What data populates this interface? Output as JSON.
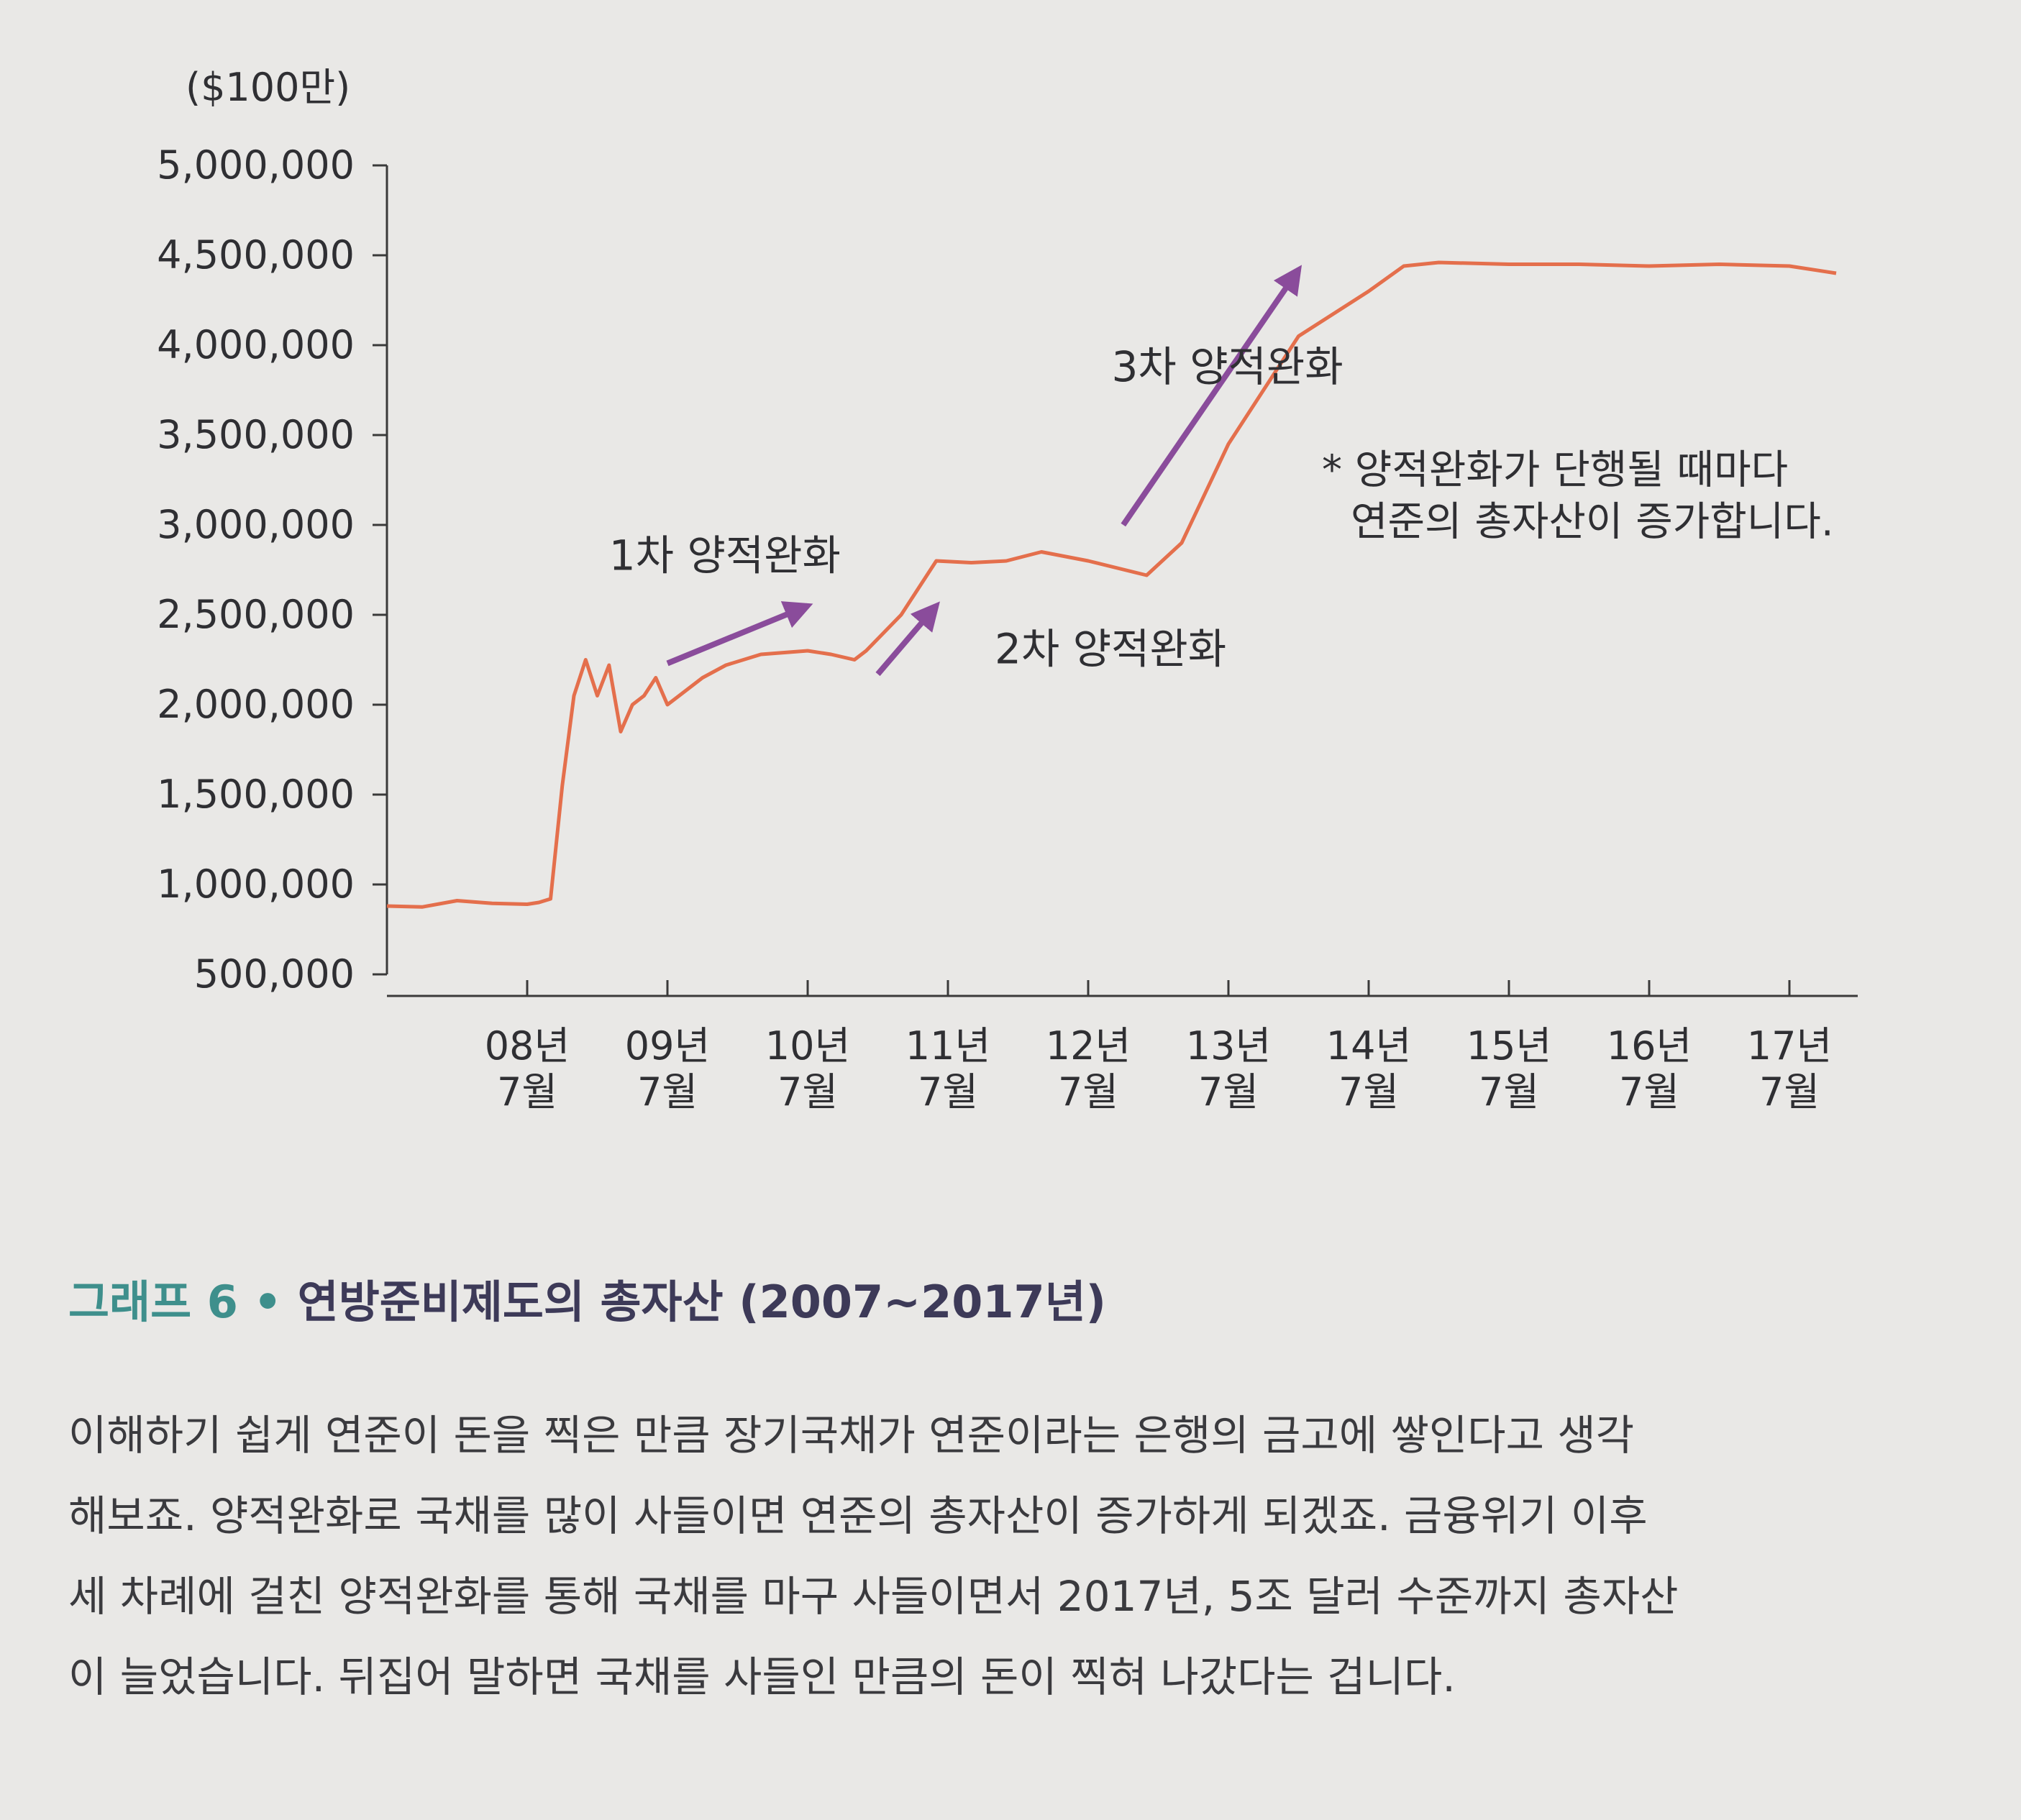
{
  "colors": {
    "line": "#e46f4c",
    "arrow": "#8a4c9b",
    "caption_label": "#3e8f8c",
    "caption_title": "#3d3a58",
    "background": "#e9e8e6"
  },
  "chart_data": {
    "type": "line",
    "unit_label": "($100만)",
    "title": "",
    "xlabel": "",
    "ylabel": "",
    "ylim": [
      500000,
      5000000
    ],
    "xlim": [
      "2007-07",
      "2017-11"
    ],
    "grid": false,
    "yticks": [
      {
        "value": 500000,
        "label": "500,000"
      },
      {
        "value": 1000000,
        "label": "1,000,000"
      },
      {
        "value": 1500000,
        "label": "1,500,000"
      },
      {
        "value": 2000000,
        "label": "2,000,000"
      },
      {
        "value": 2500000,
        "label": "2,500,000"
      },
      {
        "value": 3000000,
        "label": "3,000,000"
      },
      {
        "value": 3500000,
        "label": "3,500,000"
      },
      {
        "value": 4000000,
        "label": "4,000,000"
      },
      {
        "value": 4500000,
        "label": "4,500,000"
      },
      {
        "value": 5000000,
        "label": "5,000,000"
      }
    ],
    "xticks": [
      {
        "x": "2008-07",
        "year": "08년",
        "month": "7월"
      },
      {
        "x": "2009-07",
        "year": "09년",
        "month": "7월"
      },
      {
        "x": "2010-07",
        "year": "10년",
        "month": "7월"
      },
      {
        "x": "2011-07",
        "year": "11년",
        "month": "7월"
      },
      {
        "x": "2012-07",
        "year": "12년",
        "month": "7월"
      },
      {
        "x": "2013-07",
        "year": "13년",
        "month": "7월"
      },
      {
        "x": "2014-07",
        "year": "14년",
        "month": "7월"
      },
      {
        "x": "2015-07",
        "year": "15년",
        "month": "7월"
      },
      {
        "x": "2016-07",
        "year": "16년",
        "month": "7월"
      },
      {
        "x": "2017-07",
        "year": "17년",
        "month": "7월"
      }
    ],
    "series": [
      {
        "points": [
          [
            "2007-07",
            880000
          ],
          [
            "2007-10",
            875000
          ],
          [
            "2008-01",
            910000
          ],
          [
            "2008-04",
            895000
          ],
          [
            "2008-07",
            890000
          ],
          [
            "2008-08",
            900000
          ],
          [
            "2008-09",
            920000
          ],
          [
            "2008-10",
            1550000
          ],
          [
            "2008-11",
            2050000
          ],
          [
            "2008-12",
            2250000
          ],
          [
            "2009-01",
            2050000
          ],
          [
            "2009-02",
            2220000
          ],
          [
            "2009-03",
            1850000
          ],
          [
            "2009-04",
            2000000
          ],
          [
            "2009-05",
            2050000
          ],
          [
            "2009-06",
            2150000
          ],
          [
            "2009-07",
            2000000
          ],
          [
            "2009-08",
            2050000
          ],
          [
            "2009-10",
            2150000
          ],
          [
            "2009-12",
            2220000
          ],
          [
            "2010-03",
            2280000
          ],
          [
            "2010-07",
            2300000
          ],
          [
            "2010-09",
            2280000
          ],
          [
            "2010-11",
            2250000
          ],
          [
            "2010-12",
            2300000
          ],
          [
            "2011-03",
            2500000
          ],
          [
            "2011-06",
            2800000
          ],
          [
            "2011-09",
            2790000
          ],
          [
            "2011-12",
            2800000
          ],
          [
            "2012-03",
            2850000
          ],
          [
            "2012-07",
            2800000
          ],
          [
            "2012-12",
            2720000
          ],
          [
            "2013-03",
            2900000
          ],
          [
            "2013-07",
            3450000
          ],
          [
            "2014-01",
            4050000
          ],
          [
            "2014-07",
            4300000
          ],
          [
            "2014-10",
            4440000
          ],
          [
            "2015-01",
            4460000
          ],
          [
            "2015-07",
            4450000
          ],
          [
            "2016-01",
            4450000
          ],
          [
            "2016-07",
            4440000
          ],
          [
            "2017-01",
            4450000
          ],
          [
            "2017-07",
            4440000
          ],
          [
            "2017-11",
            4400000
          ]
        ]
      }
    ],
    "annotations": [
      {
        "text": "1차 양적완화",
        "x": "2009-02",
        "y": 2750000
      },
      {
        "text": "2차 양적완화",
        "x": "2011-11",
        "y": 2230000
      },
      {
        "text": "3차 양적완화",
        "x": "2012-09",
        "y": 3800000
      },
      {
        "lines": [
          "* 양적완화가 단행될 때마다",
          "연준의 총자산이 증가합니다."
        ],
        "x": "2014-03",
        "y": 3230000
      }
    ],
    "arrows": [
      {
        "from": [
          "2009-07",
          2230000
        ],
        "to": [
          "2010-07",
          2550000
        ]
      },
      {
        "from": [
          "2011-01",
          2170000
        ],
        "to": [
          "2011-06",
          2550000
        ]
      },
      {
        "from": [
          "2012-10",
          3000000
        ],
        "to": [
          "2014-01",
          4420000
        ]
      }
    ]
  },
  "caption": {
    "label": "그래프 6 •",
    "title": "연방준비제도의 총자산 (2007~2017년)"
  },
  "body": {
    "lines": [
      "이해하기 쉽게 연준이 돈을 찍은 만큼 장기국채가 연준이라는 은행의 금고에 쌓인다고 생각",
      "해보죠. 양적완화로 국채를 많이 사들이면 연준의 총자산이 증가하게 되겠죠. 금융위기 이후",
      "세 차례에 걸친 양적완화를 통해 국채를 마구 사들이면서 2017년, 5조 달러 수준까지 총자산",
      "이 늘었습니다. 뒤집어 말하면 국채를 사들인 만큼의 돈이 찍혀 나갔다는 겁니다."
    ]
  }
}
